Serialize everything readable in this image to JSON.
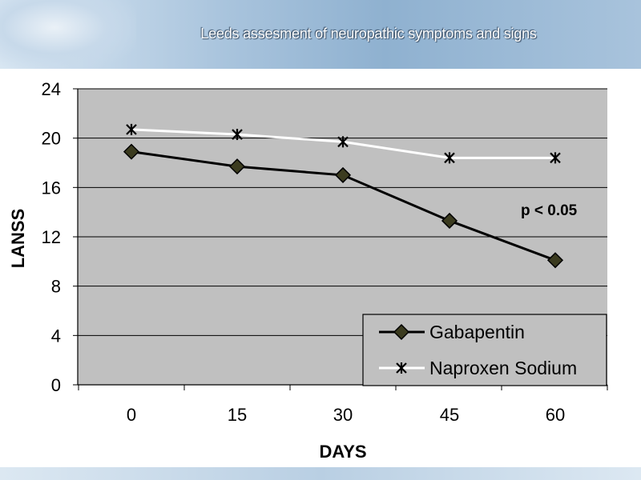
{
  "slide": {
    "title": "Leeds assesment of neuropathic symptoms and signs"
  },
  "chart_data": {
    "type": "line",
    "title": "",
    "xlabel": "DAYS",
    "ylabel": "LANSS",
    "x": [
      0,
      15,
      30,
      45,
      60
    ],
    "x_tick_labels": [
      "0",
      "15",
      "30",
      "45",
      "60"
    ],
    "ylim": [
      0,
      24
    ],
    "y_ticks": [
      0,
      4,
      8,
      12,
      16,
      20,
      24
    ],
    "grid": true,
    "legend_position": "bottom-right",
    "plot_background": "#c0c0c0",
    "annotation": "p < 0.05",
    "series": [
      {
        "name": "Gabapentin",
        "values": [
          18.9,
          17.7,
          17.0,
          13.3,
          10.1
        ],
        "color": "#000000",
        "marker": "diamond",
        "marker_fill": "#3b3b1f"
      },
      {
        "name": "Naproxen Sodium",
        "values": [
          20.7,
          20.3,
          19.7,
          18.4,
          18.4
        ],
        "color": "#ffffff",
        "marker": "asterisk",
        "marker_fill": "#000000"
      }
    ]
  }
}
